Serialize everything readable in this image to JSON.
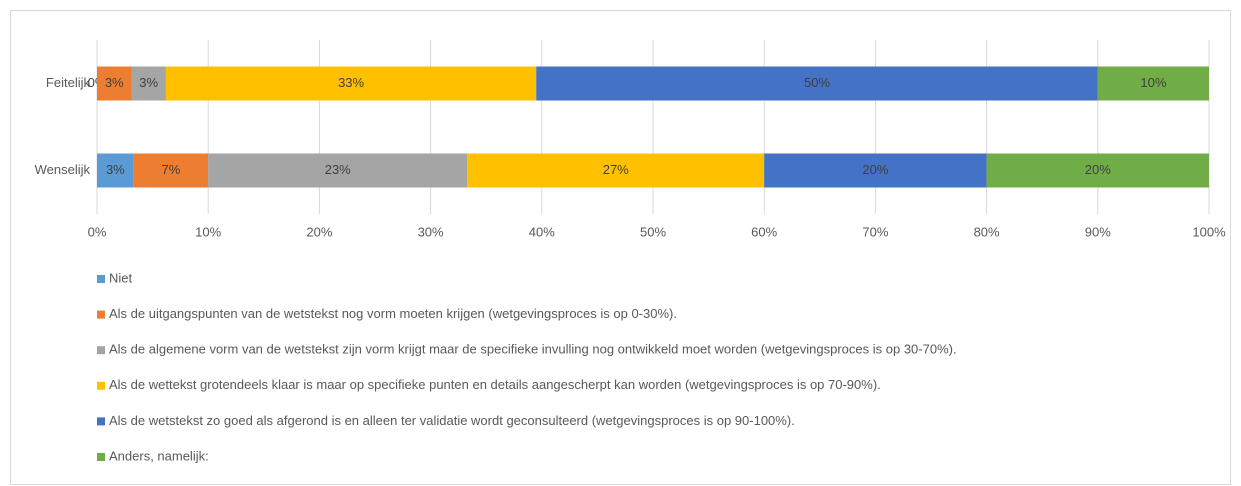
{
  "chart_data": {
    "type": "stacked-bar-horizontal",
    "categories": [
      "Feitelijk",
      "Wenselijk"
    ],
    "series": [
      {
        "name": "Niet",
        "color": "#5b9bd5",
        "values": [
          0,
          3.3
        ],
        "value_labels": [
          "0%",
          "3%"
        ]
      },
      {
        "name": "Als de uitgangspunten van de wetstekst nog vorm moeten krijgen (wetgevingsproces is op 0-30%).",
        "color": "#ed7d31",
        "values": [
          3.1,
          6.7
        ],
        "value_labels": [
          "3%",
          "7%"
        ]
      },
      {
        "name": "Als de algemene vorm van de wetstekst zijn vorm krijgt maar de specifieke invulling nog ontwikkeld moet worden (wetgevingsproces is op 30-70%).",
        "color": "#a5a5a5",
        "values": [
          3.1,
          23.3
        ],
        "value_labels": [
          "3%",
          "23%"
        ]
      },
      {
        "name": "Als de wettekst grotendeels klaar is maar op specifieke punten en details aangescherpt kan worden (wetgevingsproces is op 70-90%).",
        "color": "#ffc000",
        "values": [
          33.3,
          26.7
        ],
        "value_labels": [
          "33%",
          "27%"
        ]
      },
      {
        "name": "Als de wetstekst zo goed als afgerond is en alleen ter validatie wordt geconsulteerd (wetgevingsproces is op 90-100%).",
        "color": "#4472c4",
        "values": [
          50.5,
          20
        ],
        "value_labels": [
          "50%",
          "20%"
        ]
      },
      {
        "name": "Anders, namelijk:",
        "color": "#70ad47",
        "values": [
          10,
          20
        ],
        "value_labels": [
          "10%",
          "20%"
        ]
      }
    ],
    "xlim": [
      0,
      100
    ],
    "xticks": [
      {
        "value": 0,
        "label": "0%"
      },
      {
        "value": 10,
        "label": "10%"
      },
      {
        "value": 20,
        "label": "20%"
      },
      {
        "value": 30,
        "label": "30%"
      },
      {
        "value": 40,
        "label": "40%"
      },
      {
        "value": 50,
        "label": "50%"
      },
      {
        "value": 60,
        "label": "60%"
      },
      {
        "value": 70,
        "label": "70%"
      },
      {
        "value": 80,
        "label": "80%"
      },
      {
        "value": 90,
        "label": "90%"
      },
      {
        "value": 100,
        "label": "100%"
      }
    ],
    "grid": true,
    "legend": "bottom"
  }
}
